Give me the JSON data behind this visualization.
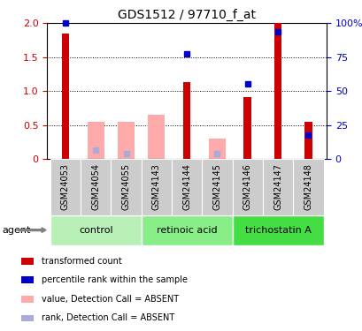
{
  "title": "GDS1512 / 97710_f_at",
  "samples": [
    "GSM24053",
    "GSM24054",
    "GSM24055",
    "GSM24143",
    "GSM24144",
    "GSM24145",
    "GSM24146",
    "GSM24147",
    "GSM24148"
  ],
  "groups": [
    {
      "name": "control",
      "indices": [
        0,
        1,
        2
      ],
      "color": "#b8f0b8"
    },
    {
      "name": "retinoic acid",
      "indices": [
        3,
        4,
        5
      ],
      "color": "#88ee88"
    },
    {
      "name": "trichostatin A",
      "indices": [
        6,
        7,
        8
      ],
      "color": "#44dd44"
    }
  ],
  "red_bars": [
    1.85,
    0.0,
    0.0,
    0.0,
    1.13,
    0.0,
    0.91,
    2.0,
    0.55
  ],
  "pink_bars": [
    0.0,
    0.55,
    0.55,
    0.65,
    0.0,
    0.3,
    0.0,
    0.0,
    0.0
  ],
  "blue_dots_y": [
    2.0,
    0.0,
    0.0,
    0.0,
    1.55,
    0.0,
    1.1,
    1.87,
    0.35
  ],
  "lavender_dots_y": [
    0.0,
    0.13,
    0.08,
    0.0,
    0.0,
    0.08,
    0.0,
    0.0,
    0.0
  ],
  "ylim": [
    0,
    2.0
  ],
  "yticks": [
    0,
    0.5,
    1.0,
    1.5,
    2.0
  ],
  "y2ticks": [
    0,
    25,
    50,
    75,
    100
  ],
  "y2ticklabels": [
    "0",
    "25",
    "50",
    "75",
    "100%"
  ],
  "red_color": "#cc0000",
  "pink_color": "#ffaaaa",
  "blue_color": "#0000cc",
  "lavender_color": "#aaaadd",
  "ticklabel_bg": "#cccccc",
  "legend_items": [
    {
      "label": "transformed count",
      "color": "#cc0000"
    },
    {
      "label": "percentile rank within the sample",
      "color": "#0000cc"
    },
    {
      "label": "value, Detection Call = ABSENT",
      "color": "#ffaaaa"
    },
    {
      "label": "rank, Detection Call = ABSENT",
      "color": "#aaaadd"
    }
  ]
}
